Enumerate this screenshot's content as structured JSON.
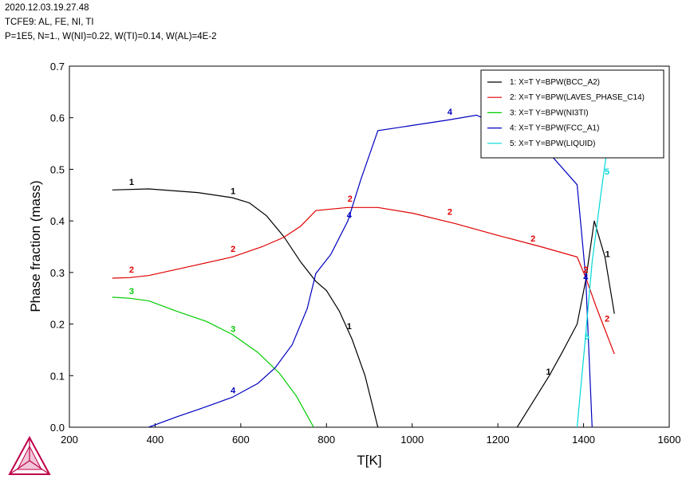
{
  "header": {
    "line1": "2020.12.03.19.27.48",
    "line2": "TCFE9: AL, FE, NI, TI",
    "line3": "P=1E5, N=1., W(NI)=0.22, W(TI)=0.14, W(AL)=4E-2"
  },
  "chart_data": {
    "type": "line",
    "title": "",
    "xlabel": "T[K]",
    "ylabel": "Phase fraction (mass)",
    "xlim": [
      200,
      1600
    ],
    "ylim": [
      0,
      0.7
    ],
    "xticks": [
      200,
      400,
      600,
      800,
      1000,
      1200,
      1400,
      1600
    ],
    "yticks": [
      0.0,
      0.1,
      0.2,
      0.3,
      0.4,
      0.5,
      0.6,
      0.7
    ],
    "xtick_labels": [
      "200",
      "400",
      "600",
      "800",
      "1000",
      "1200",
      "1400",
      "1600"
    ],
    "ytick_labels": [
      "0.0",
      "0.1",
      "0.2",
      "0.3",
      "0.4",
      "0.5",
      "0.6",
      "0.7"
    ],
    "legend_position": "top-right",
    "series": [
      {
        "id": "1",
        "name": "1:  X=T  Y=BPW(BCC_A2)",
        "color": "#000000",
        "segments": [
          [
            [
              300,
              0.46
            ],
            [
              385,
              0.462
            ],
            [
              500,
              0.455
            ],
            [
              580,
              0.445
            ],
            [
              620,
              0.435
            ],
            [
              660,
              0.41
            ],
            [
              700,
              0.37
            ],
            [
              740,
              0.32
            ],
            [
              775,
              0.283
            ],
            [
              800,
              0.265
            ],
            [
              830,
              0.225
            ],
            [
              860,
              0.17
            ],
            [
              890,
              0.1
            ],
            [
              920,
              0.0
            ]
          ],
          [
            [
              1245,
              0.0
            ],
            [
              1290,
              0.06
            ],
            [
              1320,
              0.1
            ],
            [
              1350,
              0.145
            ],
            [
              1385,
              0.2
            ],
            [
              1405,
              0.285
            ],
            [
              1425,
              0.4
            ],
            [
              1450,
              0.33
            ],
            [
              1472,
              0.22
            ]
          ]
        ],
        "labels": [
          [
            345,
            0.47
          ],
          [
            582,
            0.452
          ],
          [
            853,
            0.19
          ],
          [
            1318,
            0.102
          ],
          [
            1456,
            0.33
          ]
        ]
      },
      {
        "id": "2",
        "name": "2:  X=T  Y=BPW(LAVES_PHASE_C14)",
        "color": "#e00000",
        "segments": [
          [
            [
              300,
              0.289
            ],
            [
              340,
              0.29
            ],
            [
              385,
              0.294
            ],
            [
              500,
              0.315
            ],
            [
              580,
              0.33
            ],
            [
              650,
              0.35
            ],
            [
              700,
              0.368
            ],
            [
              740,
              0.39
            ],
            [
              775,
              0.42
            ],
            [
              850,
              0.426
            ],
            [
              920,
              0.426
            ],
            [
              1000,
              0.415
            ],
            [
              1100,
              0.395
            ],
            [
              1200,
              0.372
            ],
            [
              1300,
              0.35
            ],
            [
              1385,
              0.33
            ],
            [
              1405,
              0.29
            ],
            [
              1430,
              0.232
            ],
            [
              1472,
              0.142
            ]
          ]
        ],
        "labels": [
          [
            345,
            0.3
          ],
          [
            582,
            0.34
          ],
          [
            855,
            0.437
          ],
          [
            1088,
            0.412
          ],
          [
            1282,
            0.36
          ],
          [
            1405,
            0.3
          ],
          [
            1455,
            0.205
          ]
        ]
      },
      {
        "id": "3",
        "name": "3:  X=T  Y=BPW(NI3TI)",
        "color": "#00cc00",
        "segments": [
          [
            [
              300,
              0.252
            ],
            [
              340,
              0.25
            ],
            [
              385,
              0.245
            ],
            [
              450,
              0.225
            ],
            [
              520,
              0.205
            ],
            [
              580,
              0.18
            ],
            [
              640,
              0.145
            ],
            [
              690,
              0.105
            ],
            [
              730,
              0.06
            ],
            [
              750,
              0.03
            ],
            [
              770,
              0.0
            ]
          ]
        ],
        "labels": [
          [
            345,
            0.258
          ],
          [
            582,
            0.185
          ]
        ]
      },
      {
        "id": "4",
        "name": "4:  X=T  Y=BPW(FCC_A1)",
        "color": "#0000c0",
        "segments": [
          [
            [
              385,
              0.0
            ],
            [
              450,
              0.02
            ],
            [
              520,
              0.04
            ],
            [
              580,
              0.058
            ],
            [
              640,
              0.085
            ],
            [
              680,
              0.115
            ],
            [
              720,
              0.16
            ],
            [
              755,
              0.23
            ],
            [
              775,
              0.298
            ],
            [
              810,
              0.335
            ],
            [
              850,
              0.4
            ],
            [
              880,
              0.48
            ],
            [
              920,
              0.575
            ],
            [
              1000,
              0.585
            ],
            [
              1080,
              0.595
            ],
            [
              1150,
              0.605
            ],
            [
              1300,
              0.55
            ],
            [
              1385,
              0.47
            ],
            [
              1405,
              0.29
            ],
            [
              1420,
              0.0
            ]
          ]
        ],
        "labels": [
          [
            582,
            0.066
          ],
          [
            853,
            0.406
          ],
          [
            1088,
            0.606
          ],
          [
            1405,
            0.285
          ]
        ]
      },
      {
        "id": "5",
        "name": "5:  X=T  Y=BPW(LIQUID)",
        "color": "#00d8d8",
        "segments": [
          [
            [
              1385,
              0.0
            ],
            [
              1405,
              0.18
            ],
            [
              1420,
              0.32
            ],
            [
              1440,
              0.45
            ],
            [
              1455,
              0.54
            ],
            [
              1462,
              0.6
            ]
          ]
        ],
        "labels": [
          [
            1408,
            0.17
          ],
          [
            1455,
            0.49
          ]
        ]
      }
    ]
  }
}
